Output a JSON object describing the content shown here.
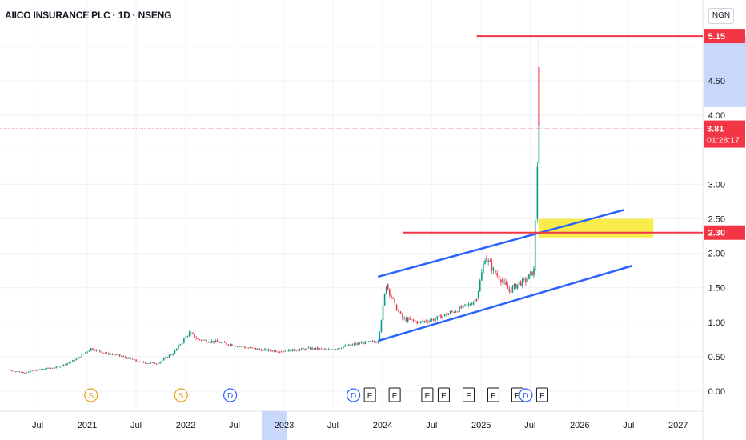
{
  "header": {
    "title": "AIICO INSURANCE PLC · 1D · NSENG",
    "currency": "NGN"
  },
  "chart_data": {
    "type": "candlestick",
    "yticks": [
      0.0,
      0.5,
      1.0,
      1.5,
      2.0,
      2.5,
      3.0,
      4.0,
      4.5
    ],
    "ylim": [
      0,
      5.5
    ],
    "xticks": [
      "Jul",
      "2021",
      "Jul",
      "2022",
      "Jul",
      "2023",
      "Jul",
      "2024",
      "Jul",
      "2025",
      "Jul",
      "2026",
      "Jul",
      "2027"
    ],
    "highlighted_xtick": "2023",
    "price_series": [
      [
        "2020-03",
        0.3
      ],
      [
        "2020-05",
        0.27
      ],
      [
        "2020-07",
        0.32
      ],
      [
        "2020-09",
        0.35
      ],
      [
        "2020-11",
        0.45
      ],
      [
        "2021-01",
        0.62
      ],
      [
        "2021-03",
        0.55
      ],
      [
        "2021-05",
        0.5
      ],
      [
        "2021-07",
        0.42
      ],
      [
        "2021-09",
        0.4
      ],
      [
        "2021-11",
        0.55
      ],
      [
        "2022-01",
        0.85
      ],
      [
        "2022-02",
        0.75
      ],
      [
        "2022-04",
        0.72
      ],
      [
        "2022-06",
        0.68
      ],
      [
        "2022-08",
        0.63
      ],
      [
        "2022-10",
        0.6
      ],
      [
        "2022-12",
        0.58
      ],
      [
        "2023-02",
        0.6
      ],
      [
        "2023-04",
        0.62
      ],
      [
        "2023-06",
        0.6
      ],
      [
        "2023-08",
        0.65
      ],
      [
        "2023-10",
        0.7
      ],
      [
        "2023-12",
        0.72
      ],
      [
        "2024-01",
        1.55
      ],
      [
        "2024-02",
        1.25
      ],
      [
        "2024-03",
        1.05
      ],
      [
        "2024-05",
        1.0
      ],
      [
        "2024-07",
        1.05
      ],
      [
        "2024-09",
        1.15
      ],
      [
        "2024-11",
        1.25
      ],
      [
        "2024-12",
        1.35
      ],
      [
        "2025-01",
        1.95
      ],
      [
        "2025-02",
        1.75
      ],
      [
        "2025-03",
        1.62
      ],
      [
        "2025-04",
        1.45
      ],
      [
        "2025-05",
        1.55
      ],
      [
        "2025-06",
        1.6
      ],
      [
        "2025-07",
        1.75
      ],
      [
        "2025-07-20",
        2.5
      ],
      [
        "2025-07-28",
        3.3
      ],
      [
        "2025-08-03",
        3.81
      ]
    ],
    "final_spike": {
      "date": "2025-08-03",
      "low": 3.6,
      "high": 5.15
    },
    "horizontal_lines": [
      {
        "value": 5.15,
        "label": "5.15",
        "from": "2024-12",
        "color": "#f23645"
      },
      {
        "value": 2.3,
        "label": "2.30",
        "from": "2024-03",
        "color": "#f23645"
      }
    ],
    "current_price": {
      "value": 3.81,
      "label": "3.81",
      "countdown": "01:28:17",
      "color": "#f23645"
    },
    "highlight_zone": {
      "from": "2025-08-01",
      "to": "2026-10-01",
      "low": 2.23,
      "high": 2.5,
      "color": "#f5e200"
    },
    "price_range_band": {
      "low": 4.12,
      "high": 5.15,
      "color": "#c9d7fb"
    },
    "channel": {
      "color": "#2962ff",
      "upper": [
        [
          "2023-12",
          1.66
        ],
        [
          "2026-06",
          2.63
        ]
      ],
      "lower": [
        [
          "2023-12",
          0.73
        ],
        [
          "2026-07",
          1.82
        ]
      ]
    },
    "events": [
      {
        "letter": "S",
        "kind": "split",
        "date": "2021-01",
        "color": "#e6a214"
      },
      {
        "letter": "S",
        "kind": "split",
        "date": "2021-12",
        "color": "#e6a214"
      },
      {
        "letter": "D",
        "kind": "dividend",
        "date": "2022-06",
        "color": "#2962ff"
      },
      {
        "letter": "D",
        "kind": "dividend",
        "date": "2023-09",
        "color": "#2962ff"
      },
      {
        "letter": "E",
        "kind": "earnings",
        "date": "2023-11",
        "color": "#131722"
      },
      {
        "letter": "E",
        "kind": "earnings",
        "date": "2024-02",
        "color": "#131722"
      },
      {
        "letter": "E",
        "kind": "earnings",
        "date": "2024-06",
        "color": "#131722"
      },
      {
        "letter": "E",
        "kind": "earnings",
        "date": "2024-08",
        "color": "#131722"
      },
      {
        "letter": "E",
        "kind": "earnings",
        "date": "2024-11",
        "color": "#131722"
      },
      {
        "letter": "E",
        "kind": "earnings",
        "date": "2025-02",
        "color": "#131722"
      },
      {
        "letter": "E",
        "kind": "earnings",
        "date": "2025-05",
        "color": "#131722"
      },
      {
        "letter": "D",
        "kind": "dividend",
        "date": "2025-06",
        "color": "#2962ff"
      },
      {
        "letter": "E",
        "kind": "earnings",
        "date": "2025-08",
        "color": "#131722"
      }
    ],
    "colors": {
      "up": "#089981",
      "down": "#f23645",
      "grid": "#f0f3fa",
      "axis_text": "#131722"
    }
  }
}
